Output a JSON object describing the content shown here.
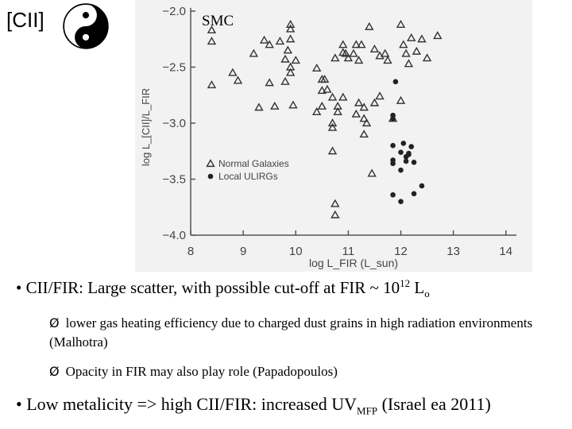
{
  "slide": {
    "title": "[CII]",
    "icon": "yin-yang-icon",
    "smc_label": "SMC",
    "bullets": [
      {
        "bullet": "•",
        "text": "CII/FIR: Large scatter, with possible cut-off at FIR ~ 10",
        "sup": "12",
        "text2": " L",
        "sub": "o"
      },
      {
        "bullet": "•",
        "text": "Low metalicity => high CII/FIR: increased UV",
        "sub": "MFP",
        "text2": "  (Israel ea 2011)"
      }
    ],
    "subpoints": [
      {
        "arrow": "Ø",
        "text": "lower gas heating efficiency due to charged dust grains in high radiation environments (Malhotra)"
      },
      {
        "arrow": "Ø",
        "text": "Opacity in FIR may also play role (Papadopoulos)"
      }
    ]
  },
  "chart_data": {
    "type": "scatter",
    "xlabel": "log L_FIR (L_sun)",
    "ylabel": "log L_[CII]/L_FIR",
    "xlim": [
      8,
      14.5
    ],
    "ylim": [
      -4.0,
      -2.0
    ],
    "xticks": [
      "8",
      "9",
      "10",
      "11",
      "12",
      "13",
      "14"
    ],
    "yticks": [
      "-2.0",
      "-2.5",
      "-3.0",
      "-3.5",
      "-4.0"
    ],
    "legend": {
      "position": "lower-left",
      "entries": [
        "Normal Galaxies",
        "Local ULIRGs"
      ]
    },
    "series": [
      {
        "name": "Normal Galaxies",
        "marker": "triangle",
        "points": [
          [
            8.4,
            -2.17
          ],
          [
            8.4,
            -2.27
          ],
          [
            8.4,
            -2.66
          ],
          [
            8.8,
            -2.55
          ],
          [
            8.9,
            -2.62
          ],
          [
            9.2,
            -2.38
          ],
          [
            9.4,
            -2.26
          ],
          [
            9.5,
            -2.3
          ],
          [
            9.3,
            -2.86
          ],
          [
            9.6,
            -2.85
          ],
          [
            9.7,
            -2.27
          ],
          [
            9.8,
            -2.43
          ],
          [
            9.85,
            -2.35
          ],
          [
            9.9,
            -2.12
          ],
          [
            9.9,
            -2.16
          ],
          [
            9.9,
            -2.25
          ],
          [
            10.0,
            -2.44
          ],
          [
            9.9,
            -2.55
          ],
          [
            9.8,
            -2.63
          ],
          [
            9.95,
            -2.84
          ],
          [
            9.5,
            -2.64
          ],
          [
            9.9,
            -2.5
          ],
          [
            10.4,
            -2.51
          ],
          [
            10.5,
            -2.61
          ],
          [
            10.55,
            -2.61
          ],
          [
            10.5,
            -2.71
          ],
          [
            10.6,
            -2.7
          ],
          [
            10.7,
            -2.77
          ],
          [
            10.75,
            -2.42
          ],
          [
            10.8,
            -2.85
          ],
          [
            10.4,
            -2.9
          ],
          [
            10.7,
            -3.04
          ],
          [
            10.5,
            -2.85
          ],
          [
            10.9,
            -2.3
          ],
          [
            10.9,
            -2.37
          ],
          [
            10.95,
            -2.38
          ],
          [
            11.0,
            -2.42
          ],
          [
            11.1,
            -2.38
          ],
          [
            11.15,
            -2.3
          ],
          [
            11.2,
            -2.44
          ],
          [
            11.25,
            -2.3
          ],
          [
            11.4,
            -2.14
          ],
          [
            11.5,
            -2.34
          ],
          [
            11.6,
            -2.4
          ],
          [
            11.7,
            -2.38
          ],
          [
            11.75,
            -2.44
          ],
          [
            11.2,
            -2.82
          ],
          [
            11.3,
            -2.86
          ],
          [
            11.15,
            -2.92
          ],
          [
            11.3,
            -2.96
          ],
          [
            11.35,
            -3.0
          ],
          [
            11.3,
            -3.1
          ],
          [
            11.6,
            -2.76
          ],
          [
            11.5,
            -2.82
          ],
          [
            12.0,
            -2.8
          ],
          [
            11.85,
            -2.96
          ],
          [
            12.0,
            -2.12
          ],
          [
            12.05,
            -2.3
          ],
          [
            12.1,
            -2.38
          ],
          [
            12.15,
            -2.47
          ],
          [
            12.2,
            -2.24
          ],
          [
            12.3,
            -2.36
          ],
          [
            12.4,
            -2.25
          ],
          [
            12.5,
            -2.42
          ],
          [
            12.7,
            -2.22
          ],
          [
            10.9,
            -2.77
          ],
          [
            10.8,
            -2.9
          ],
          [
            10.7,
            -3.0
          ],
          [
            11.45,
            -3.45
          ],
          [
            10.7,
            -3.25
          ],
          [
            10.75,
            -3.72
          ],
          [
            10.75,
            -3.82
          ]
        ]
      },
      {
        "name": "Local ULIRGs",
        "marker": "circle",
        "points": [
          [
            11.9,
            -2.63
          ],
          [
            11.85,
            -2.93
          ],
          [
            11.85,
            -2.96
          ],
          [
            11.85,
            -3.2
          ],
          [
            11.85,
            -3.33
          ],
          [
            11.85,
            -3.36
          ],
          [
            11.85,
            -3.64
          ],
          [
            12.05,
            -3.18
          ],
          [
            12.0,
            -3.26
          ],
          [
            12.1,
            -3.3
          ],
          [
            12.15,
            -3.28
          ],
          [
            12.1,
            -3.34
          ],
          [
            12.25,
            -3.35
          ],
          [
            12.2,
            -3.21
          ],
          [
            12.0,
            -3.42
          ],
          [
            12.0,
            -3.7
          ],
          [
            12.25,
            -3.63
          ],
          [
            12.4,
            -3.56
          ],
          [
            12.15,
            -3.27
          ]
        ]
      }
    ]
  }
}
